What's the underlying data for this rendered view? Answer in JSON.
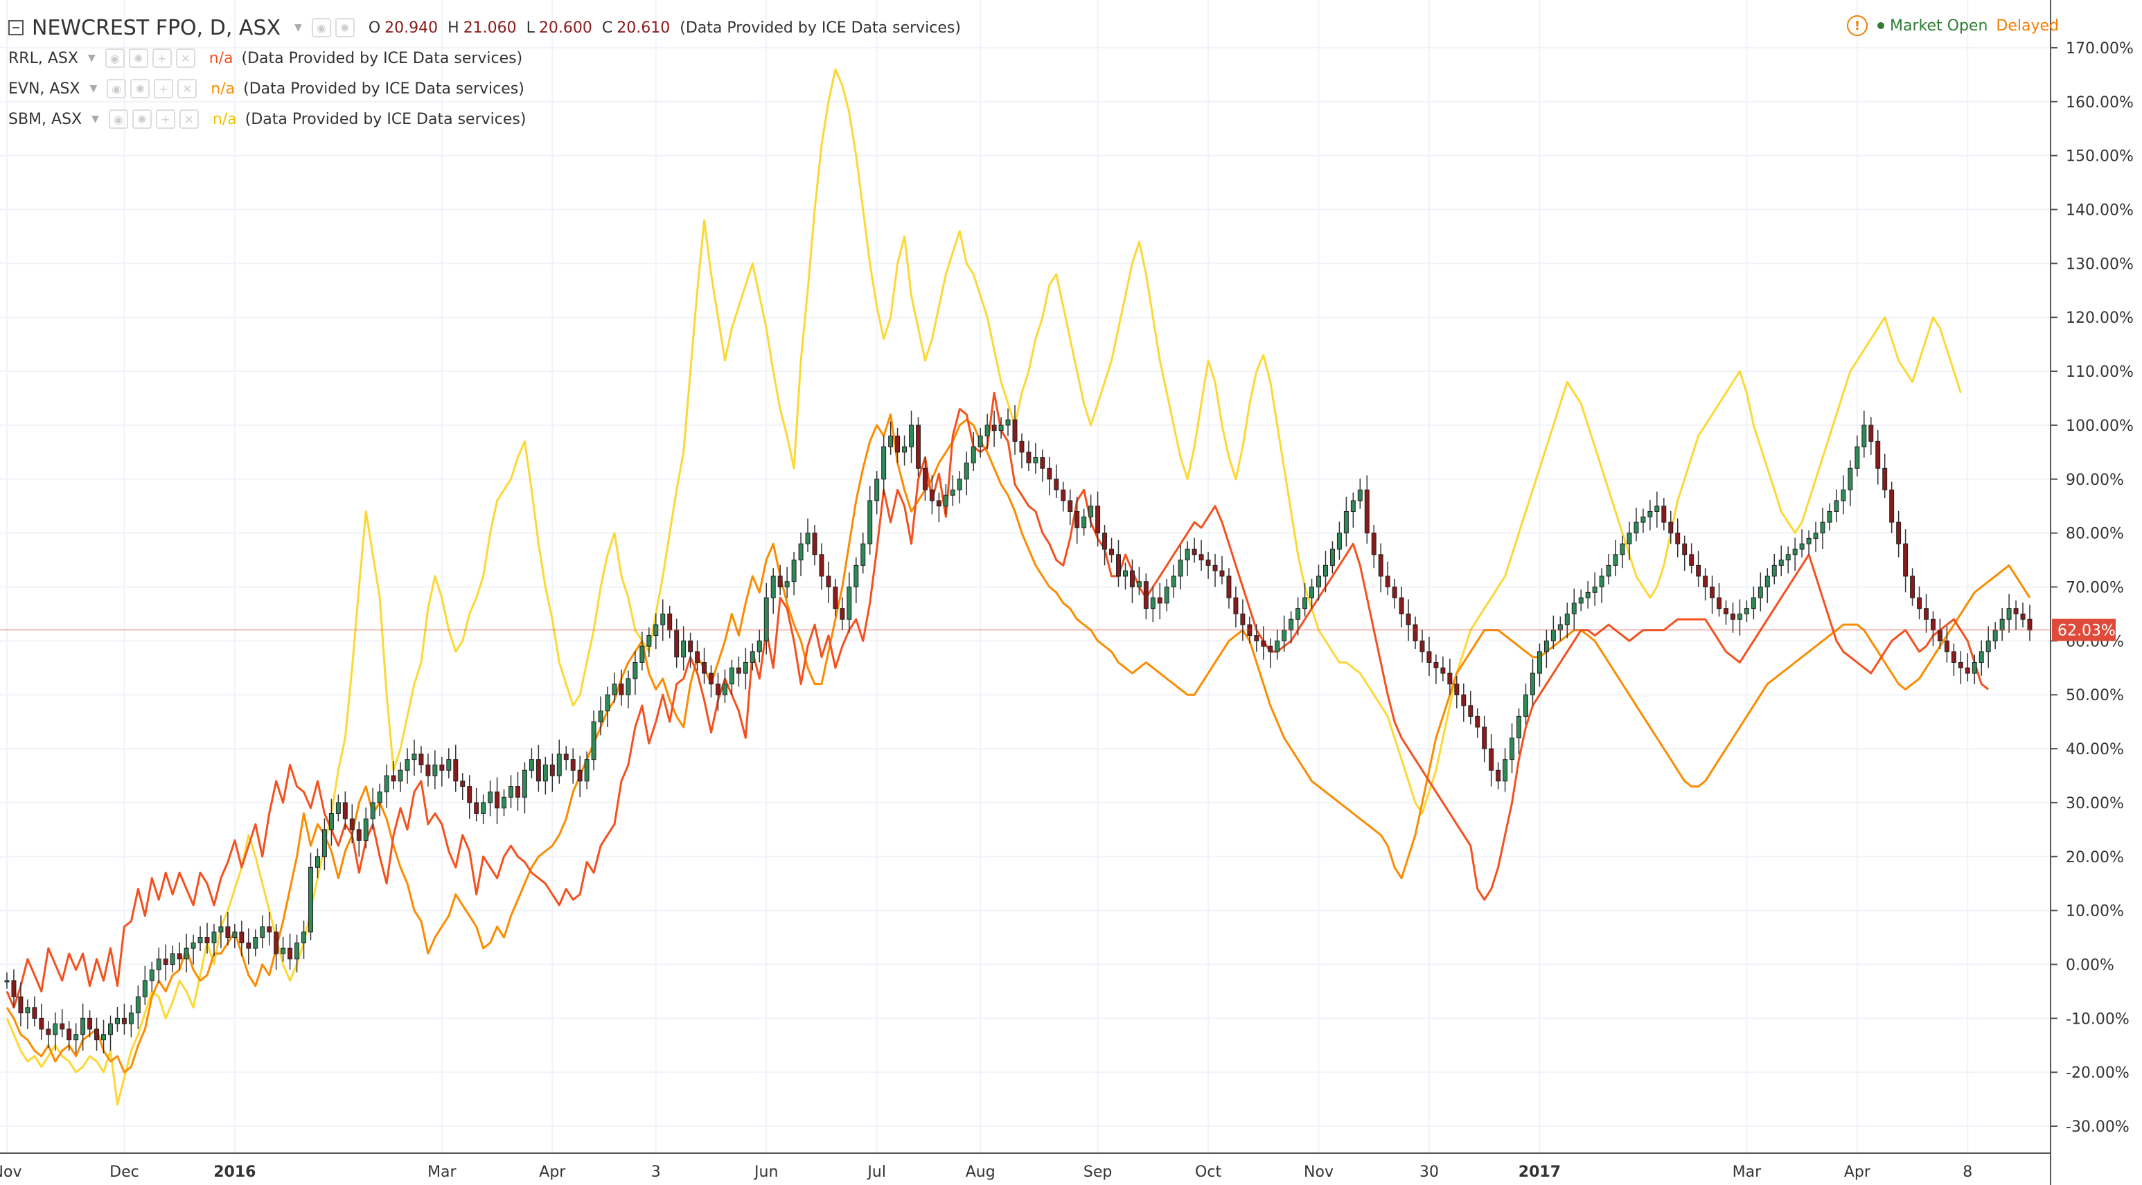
{
  "header": {
    "symbol": "NEWCREST FPO, D, ASX",
    "ohlc": [
      {
        "k": "O",
        "v": "20.940"
      },
      {
        "k": "H",
        "v": "21.060"
      },
      {
        "k": "L",
        "v": "20.600"
      },
      {
        "k": "C",
        "v": "20.610"
      }
    ],
    "source": "(Data Provided by ICE Data services)",
    "market_status": "Market Open",
    "delay_status": "Delayed"
  },
  "compare": [
    {
      "symbol": "RRL, ASX",
      "value": "n/a",
      "source": "(Data Provided by ICE Data services)",
      "color": "#f4511e"
    },
    {
      "symbol": "EVN, ASX",
      "value": "n/a",
      "source": "(Data Provided by ICE Data services)",
      "color": "#fb8c00"
    },
    {
      "symbol": "SBM, ASX",
      "value": "n/a",
      "source": "(Data Provided by ICE Data services)",
      "color": "#fdd835"
    }
  ],
  "colors": {
    "up": "#2e8b57",
    "down": "#8b1a1a",
    "rrl": "#f4511e",
    "evn": "#fb8c00",
    "sbm": "#fdd835",
    "grid": "#f0f3fa",
    "last_price_badge": "#e04a3a"
  },
  "chart_data": {
    "type": "line",
    "y_axis": {
      "unit": "%",
      "range": [
        -35,
        175
      ],
      "ticks": [
        "-30.00%",
        "-20.00%",
        "-10.00%",
        "0.00%",
        "10.00%",
        "20.00%",
        "30.00%",
        "40.00%",
        "50.00%",
        "60.00%",
        "70.00%",
        "80.00%",
        "90.00%",
        "100.00%",
        "110.00%",
        "120.00%",
        "130.00%",
        "140.00%",
        "150.00%",
        "160.00%",
        "170.00%"
      ],
      "tick_values": [
        -30,
        -20,
        -10,
        0,
        10,
        20,
        30,
        40,
        50,
        60,
        70,
        80,
        90,
        100,
        110,
        120,
        130,
        140,
        150,
        160,
        170
      ]
    },
    "x_axis": {
      "labels": [
        "Nov",
        "Dec",
        "2016",
        "Mar",
        "Apr",
        "3",
        "Jun",
        "Jul",
        "Aug",
        "Sep",
        "Oct",
        "Nov",
        "30",
        "2017",
        "Mar",
        "Apr",
        "8"
      ],
      "label_index": [
        0,
        17,
        33,
        63,
        79,
        94,
        110,
        126,
        141,
        158,
        174,
        190,
        206,
        222,
        252,
        268,
        284
      ],
      "bold": [
        "2016",
        "2017"
      ]
    },
    "last_value_label": "62.03%",
    "last_value": 62.03,
    "series": [
      {
        "name": "NEWCREST FPO, D, ASX",
        "style": "candles",
        "values": [
          -3,
          -6,
          -9,
          -8,
          -10,
          -12,
          -13,
          -11,
          -12,
          -14,
          -13,
          -10,
          -12,
          -14,
          -13,
          -11,
          -10,
          -11,
          -9,
          -6,
          -3,
          -1,
          1,
          0,
          2,
          1,
          3,
          4,
          5,
          4,
          6,
          7,
          5,
          6,
          4,
          3,
          5,
          7,
          6,
          2,
          3,
          1,
          4,
          6,
          18,
          20,
          25,
          28,
          30,
          27,
          25,
          23,
          27,
          30,
          32,
          35,
          34,
          36,
          38,
          39,
          37,
          35,
          37,
          36,
          38,
          34,
          33,
          30,
          28,
          30,
          32,
          29,
          31,
          33,
          31,
          36,
          38,
          34,
          37,
          35,
          39,
          38,
          36,
          34,
          38,
          45,
          47,
          50,
          52,
          50,
          53,
          56,
          59,
          61,
          63,
          65,
          62,
          57,
          60,
          58,
          56,
          54,
          52,
          50,
          52,
          55,
          54,
          56,
          58,
          60,
          68,
          72,
          70,
          71,
          75,
          78,
          80,
          76,
          72,
          70,
          66,
          64,
          70,
          74,
          78,
          86,
          90,
          96,
          98,
          95,
          96,
          100,
          92,
          88,
          86,
          85,
          87,
          88,
          90,
          93,
          96,
          98,
          100,
          99,
          100,
          101,
          97,
          95,
          93,
          94,
          92,
          90,
          88,
          86,
          84,
          81,
          83,
          85,
          80,
          77,
          76,
          72,
          73,
          70,
          71,
          66,
          68,
          67,
          70,
          72,
          75,
          77,
          76,
          75,
          74,
          73,
          72,
          68,
          65,
          63,
          61,
          60,
          59,
          58,
          60,
          62,
          64,
          66,
          68,
          70,
          72,
          74,
          77,
          80,
          84,
          86,
          88,
          80,
          76,
          72,
          70,
          68,
          65,
          63,
          60,
          58,
          56,
          55,
          54,
          52,
          50,
          48,
          46,
          44,
          40,
          36,
          34,
          38,
          42,
          46,
          50,
          54,
          58,
          60,
          62,
          63,
          65,
          67,
          68,
          69,
          70,
          72,
          74,
          76,
          78,
          80,
          82,
          83,
          84,
          85,
          82,
          80,
          78,
          76,
          74,
          72,
          70,
          68,
          66,
          65,
          64,
          65,
          66,
          68,
          70,
          72,
          74,
          75,
          76,
          77,
          78,
          79,
          80,
          82,
          84,
          86,
          88,
          92,
          96,
          100,
          97,
          92,
          88,
          82,
          78,
          72,
          68,
          66,
          64,
          62,
          60,
          58,
          56,
          55,
          54,
          56,
          58,
          60,
          62,
          64,
          66,
          65,
          64,
          62
        ]
      },
      {
        "name": "RRL, ASX",
        "style": "line",
        "values": [
          -5,
          -8,
          -4,
          1,
          -2,
          -5,
          3,
          0,
          -3,
          2,
          -1,
          2,
          -4,
          1,
          -3,
          3,
          -4,
          7,
          8,
          14,
          9,
          16,
          12,
          17,
          13,
          17,
          14,
          11,
          17,
          15,
          11,
          16,
          19,
          23,
          18,
          22,
          26,
          20,
          28,
          34,
          30,
          37,
          33,
          32,
          29,
          34,
          28,
          25,
          22,
          26,
          24,
          17,
          23,
          26,
          20,
          15,
          24,
          29,
          25,
          32,
          34,
          26,
          28,
          26,
          21,
          18,
          24,
          21,
          13,
          20,
          18,
          16,
          20,
          22,
          20,
          19,
          17,
          16,
          15,
          13,
          11,
          14,
          12,
          13,
          19,
          17,
          22,
          24,
          26,
          34,
          37,
          44,
          48,
          41,
          45,
          50,
          45,
          52,
          53,
          57,
          54,
          49,
          43,
          49,
          53,
          50,
          47,
          42,
          58,
          53,
          62,
          55,
          68,
          66,
          60,
          52,
          59,
          63,
          57,
          61,
          55,
          59,
          62,
          64,
          60,
          67,
          77,
          88,
          82,
          88,
          85,
          78,
          90,
          94,
          86,
          91,
          83,
          98,
          103,
          102,
          96,
          95,
          96,
          106,
          99,
          97,
          89,
          87,
          85,
          84,
          80,
          78,
          75,
          74,
          79,
          86,
          88,
          82,
          79,
          77,
          72,
          72,
          76,
          73,
          70,
          68,
          70,
          72,
          74,
          76,
          78,
          80,
          82,
          81,
          83,
          85,
          82,
          78,
          74,
          70,
          66,
          62,
          60,
          58,
          58,
          59,
          60,
          62,
          64,
          66,
          68,
          70,
          72,
          74,
          76,
          78,
          74,
          68,
          62,
          56,
          50,
          45,
          42,
          40,
          38,
          36,
          34,
          32,
          30,
          28,
          26,
          24,
          22,
          14,
          12,
          14,
          18,
          24,
          30,
          38,
          44,
          48,
          50,
          52,
          54,
          56,
          58,
          60,
          62,
          62,
          61,
          62,
          63,
          62,
          61,
          60,
          61,
          62,
          62,
          62,
          62,
          63,
          64,
          64,
          64,
          64,
          64,
          62,
          60,
          58,
          57,
          56,
          58,
          60,
          62,
          64,
          66,
          68,
          70,
          72,
          74,
          76,
          72,
          68,
          64,
          60,
          58,
          57,
          56,
          55,
          54,
          56,
          58,
          60,
          61,
          62,
          60,
          58,
          59,
          61,
          62,
          63,
          64,
          62,
          60,
          56,
          52,
          51
        ]
      },
      {
        "name": "EVN, ASX",
        "style": "line",
        "values": [
          -8,
          -10,
          -13,
          -14,
          -16,
          -17,
          -15,
          -18,
          -16,
          -15,
          -17,
          -14,
          -13,
          -12,
          -16,
          -18,
          -17,
          -20,
          -19,
          -15,
          -12,
          -6,
          -3,
          -5,
          -2,
          -1,
          3,
          -1,
          -3,
          -2,
          2,
          2,
          4,
          6,
          2,
          -2,
          -4,
          0,
          -2,
          3,
          8,
          14,
          20,
          28,
          22,
          26,
          24,
          21,
          16,
          21,
          24,
          30,
          33,
          28,
          30,
          27,
          22,
          18,
          15,
          10,
          8,
          2,
          5,
          7,
          9,
          13,
          11,
          9,
          7,
          3,
          4,
          7,
          5,
          9,
          12,
          15,
          18,
          20,
          21,
          22,
          24,
          27,
          32,
          35,
          38,
          41,
          44,
          47,
          49,
          53,
          56,
          58,
          60,
          54,
          51,
          53,
          49,
          46,
          44,
          52,
          57,
          55,
          52,
          56,
          60,
          65,
          61,
          67,
          72,
          69,
          75,
          78,
          72,
          67,
          63,
          60,
          55,
          52,
          52,
          58,
          64,
          70,
          78,
          86,
          92,
          97,
          100,
          98,
          102,
          93,
          88,
          84,
          86,
          88,
          90,
          93,
          95,
          97,
          100,
          101,
          100,
          97,
          95,
          92,
          89,
          87,
          84,
          80,
          77,
          74,
          72,
          70,
          69,
          67,
          66,
          64,
          63,
          62,
          60,
          59,
          58,
          56,
          55,
          54,
          55,
          56,
          55,
          54,
          53,
          52,
          51,
          50,
          50,
          52,
          54,
          56,
          58,
          60,
          61,
          62,
          60,
          56,
          52,
          48,
          45,
          42,
          40,
          38,
          36,
          34,
          33,
          32,
          31,
          30,
          29,
          28,
          27,
          26,
          25,
          24,
          22,
          18,
          16,
          20,
          24,
          30,
          36,
          42,
          46,
          50,
          54,
          56,
          58,
          60,
          62,
          62,
          62,
          61,
          60,
          59,
          58,
          57,
          57,
          58,
          59,
          60,
          61,
          62,
          62,
          61,
          60,
          58,
          56,
          54,
          52,
          50,
          48,
          46,
          44,
          42,
          40,
          38,
          36,
          34,
          33,
          33,
          34,
          36,
          38,
          40,
          42,
          44,
          46,
          48,
          50,
          52,
          53,
          54,
          55,
          56,
          57,
          58,
          59,
          60,
          61,
          62,
          63,
          63,
          63,
          62,
          60,
          58,
          56,
          54,
          52,
          51,
          52,
          53,
          55,
          57,
          59,
          61,
          63,
          65,
          67,
          69,
          70,
          71,
          72,
          73,
          74,
          72,
          70,
          68
        ]
      },
      {
        "name": "SBM, ASX",
        "style": "line",
        "values": [
          -10,
          -13,
          -16,
          -18,
          -17,
          -19,
          -17,
          -15,
          -17,
          -18,
          -20,
          -19,
          -17,
          -18,
          -20,
          -16,
          -26,
          -21,
          -16,
          -13,
          -9,
          -5,
          -6,
          -10,
          -7,
          -3,
          -5,
          -8,
          -2,
          4,
          0,
          7,
          10,
          14,
          18,
          24,
          20,
          15,
          10,
          5,
          0,
          -3,
          0,
          4,
          10,
          16,
          22,
          28,
          36,
          42,
          55,
          70,
          84,
          76,
          68,
          50,
          36,
          40,
          46,
          52,
          56,
          66,
          72,
          68,
          62,
          58,
          60,
          65,
          68,
          72,
          80,
          86,
          88,
          90,
          94,
          97,
          88,
          78,
          70,
          64,
          56,
          52,
          48,
          50,
          56,
          62,
          70,
          76,
          80,
          72,
          68,
          62,
          60,
          58,
          65,
          72,
          80,
          88,
          95,
          110,
          125,
          138,
          128,
          120,
          112,
          118,
          122,
          126,
          130,
          124,
          118,
          110,
          103,
          98,
          92,
          112,
          125,
          140,
          152,
          160,
          166,
          163,
          158,
          150,
          140,
          130,
          122,
          116,
          120,
          130,
          135,
          124,
          118,
          112,
          116,
          122,
          128,
          132,
          136,
          130,
          128,
          124,
          120,
          114,
          108,
          104,
          100,
          106,
          110,
          116,
          120,
          126,
          128,
          122,
          116,
          110,
          104,
          100,
          104,
          108,
          112,
          118,
          124,
          130,
          134,
          128,
          120,
          112,
          106,
          100,
          94,
          90,
          96,
          104,
          112,
          108,
          100,
          94,
          90,
          96,
          104,
          110,
          113,
          108,
          100,
          92,
          84,
          76,
          70,
          66,
          62,
          60,
          58,
          56,
          56,
          55,
          54,
          52,
          50,
          48,
          46,
          42,
          38,
          34,
          30,
          28,
          32,
          36,
          42,
          48,
          54,
          58,
          62,
          64,
          66,
          68,
          70,
          72,
          76,
          80,
          84,
          88,
          92,
          96,
          100,
          104,
          108,
          106,
          104,
          100,
          96,
          92,
          88,
          84,
          80,
          76,
          72,
          70,
          68,
          70,
          74,
          80,
          86,
          90,
          94,
          98,
          100,
          102,
          104,
          106,
          108,
          110,
          106,
          100,
          96,
          92,
          88,
          84,
          82,
          80,
          82,
          86,
          90,
          94,
          98,
          102,
          106,
          110,
          112,
          114,
          116,
          118,
          120,
          116,
          112,
          110,
          108,
          112,
          116,
          120,
          118,
          114,
          110,
          106
        ]
      }
    ]
  }
}
